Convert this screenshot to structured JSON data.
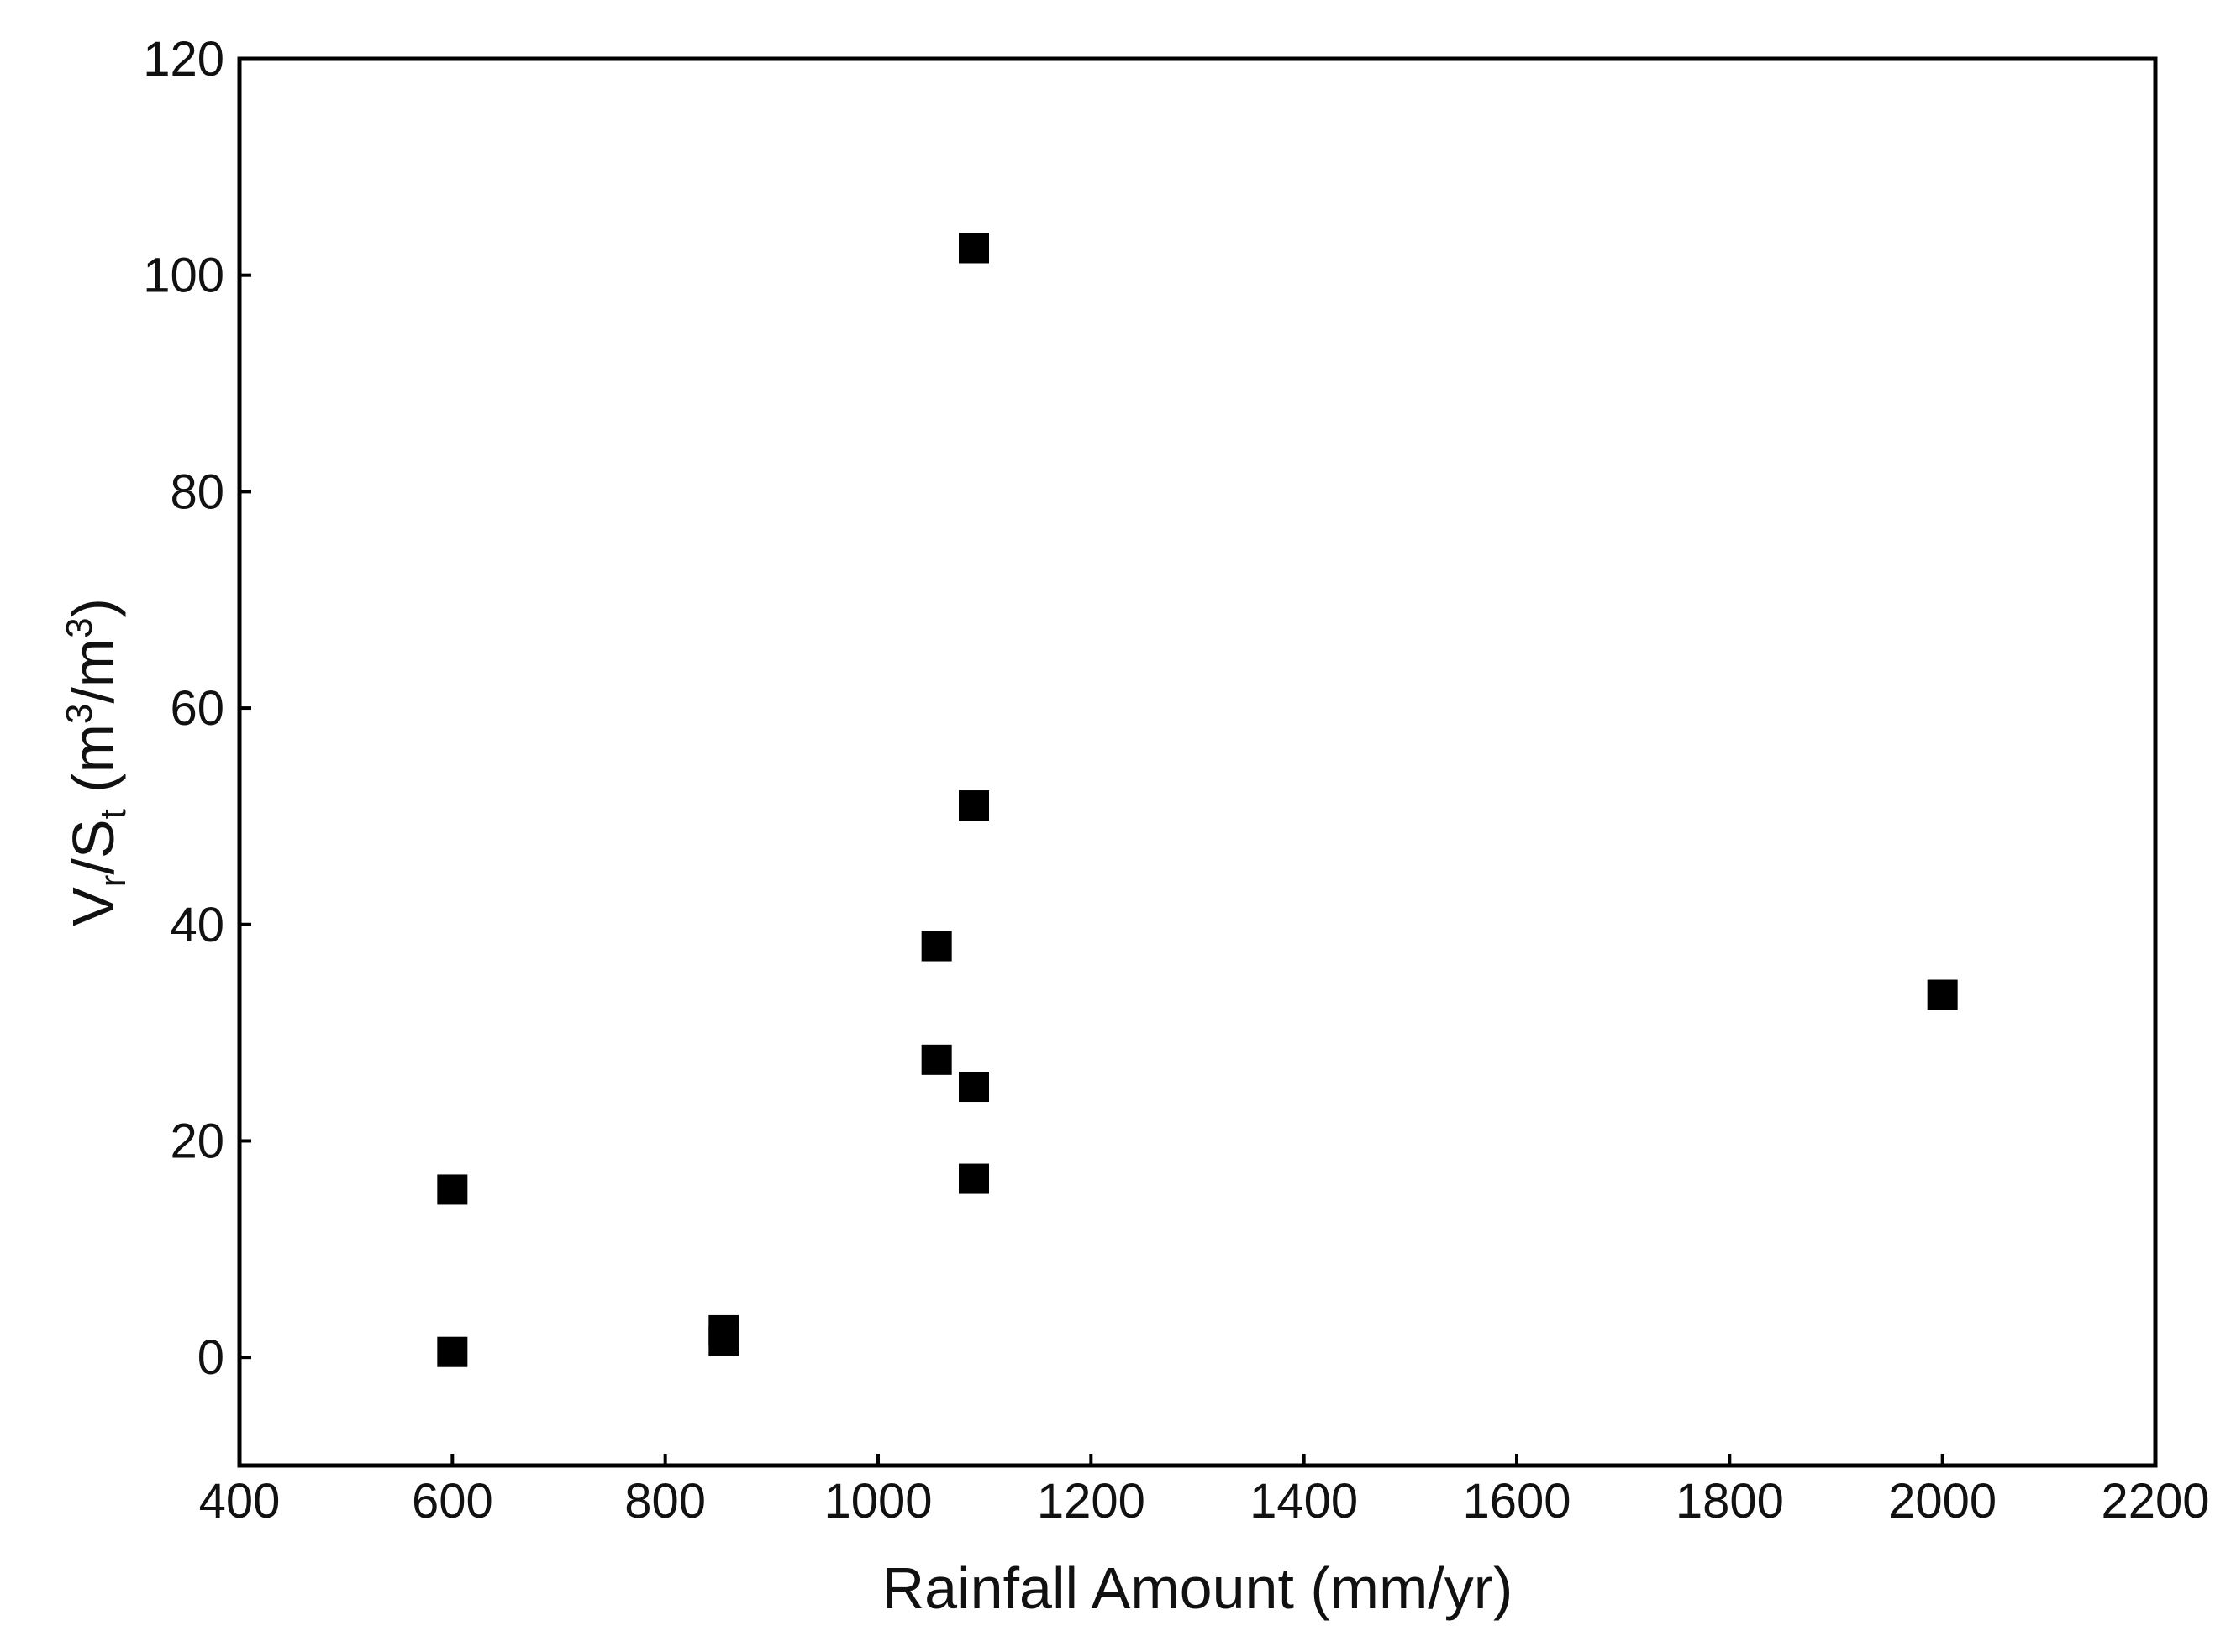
{
  "chart_data": {
    "type": "scatter",
    "title": "",
    "xlabel": "Rainfall Amount (mm/yr)",
    "ylabel": {
      "main": "V",
      "sub1": "r",
      "mid": "/S",
      "sub2": "t",
      "unit_open": " (m",
      "sup1": "3",
      "unit_mid": "/m",
      "sup2": "3",
      "unit_close": ")"
    },
    "xlim": [
      400,
      2200
    ],
    "ylim": [
      -10,
      120
    ],
    "xticks": [
      400,
      600,
      800,
      1000,
      1200,
      1400,
      1600,
      1800,
      2000,
      2200
    ],
    "yticks": [
      0,
      20,
      40,
      60,
      80,
      100,
      120
    ],
    "grid": false,
    "legend": "none",
    "marker": "square",
    "marker_color": "#000000",
    "series": [
      {
        "x": [
          600,
          600,
          855,
          855,
          1055,
          1055,
          1090,
          1090,
          1090,
          1090,
          2000
        ],
        "y": [
          0.5,
          15.5,
          1.5,
          2.5,
          27.5,
          38,
          16.5,
          25,
          51,
          102.5,
          33.5
        ]
      }
    ]
  }
}
